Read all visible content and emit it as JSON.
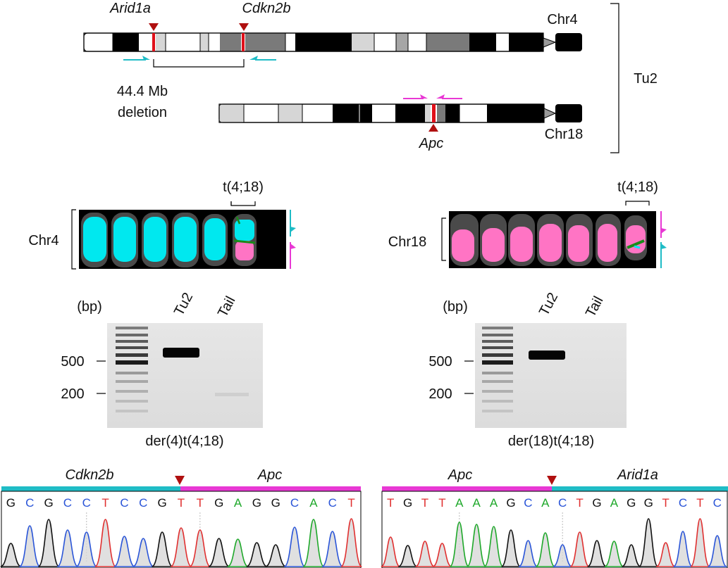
{
  "chromosomes": {
    "chr4": {
      "name": "Chr4",
      "genes": [
        "Arid1a",
        "Cdkn2b"
      ],
      "deletion_size": "44.4 Mb",
      "deletion_word": "deletion"
    },
    "chr18": {
      "name": "Chr18",
      "gene": "Apc"
    },
    "tumor_label": "Tu2"
  },
  "fish": {
    "left": {
      "chromosome": "Chr4",
      "translocation": "t(4;18)"
    },
    "right": {
      "chromosome": "Chr18",
      "translocation": "t(4;18)"
    }
  },
  "gels": {
    "left": {
      "unit": "(bp)",
      "lanes": [
        "Tu2",
        "Tail"
      ],
      "markers": [
        "500",
        "200"
      ],
      "caption": "der(4)t(4;18)"
    },
    "right": {
      "unit": "(bp)",
      "lanes": [
        "Tu2",
        "Tail"
      ],
      "markers": [
        "500",
        "200"
      ],
      "caption": "der(18)t(4;18)"
    }
  },
  "chromatograms": {
    "left": {
      "gene_left": "Cdkn2b",
      "gene_right": "Apc",
      "sequence": [
        "G",
        "C",
        "G",
        "C",
        "C",
        "T",
        "C",
        "C",
        "G",
        "T",
        "T",
        "G",
        "A",
        "G",
        "G",
        "C",
        "A",
        "C",
        "T"
      ]
    },
    "right": {
      "gene_left": "Apc",
      "gene_right": "Arid1a",
      "sequence": [
        "T",
        "G",
        "T",
        "T",
        "A",
        "A",
        "A",
        "G",
        "C",
        "A",
        "C",
        "T",
        "G",
        "A",
        "G",
        "G",
        "T",
        "C",
        "T",
        "C"
      ]
    }
  },
  "colors": {
    "cyan": "#1fbcc6",
    "magenta": "#e838d4",
    "red": "#b01010",
    "breakpoint": "#e0101a",
    "fish_cyan": "#00e8ef",
    "fish_pink": "#ff74c4",
    "base_G": "#111111",
    "base_C": "#2a55d8",
    "base_T": "#e03030",
    "base_A": "#1ea82a"
  }
}
